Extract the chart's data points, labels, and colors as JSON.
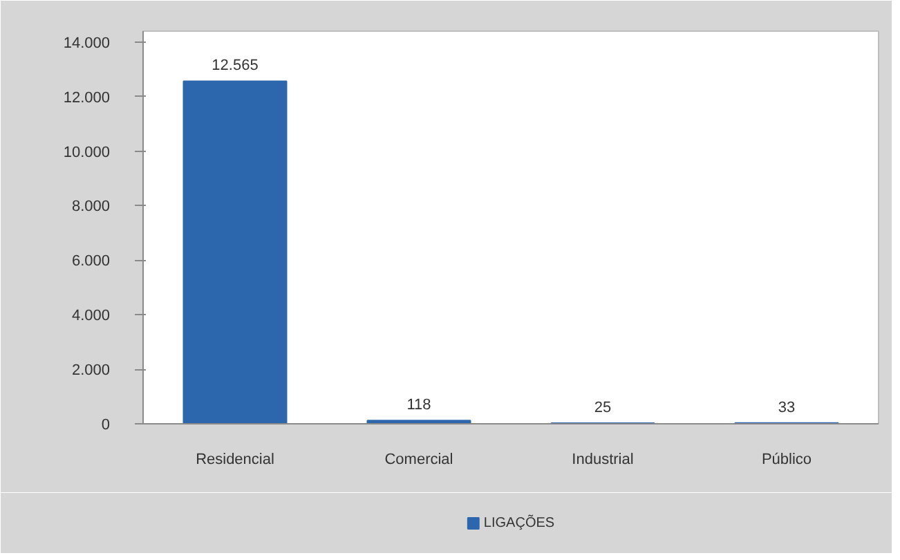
{
  "chart_data": {
    "type": "bar",
    "categories": [
      "Residencial",
      "Comercial",
      "Industrial",
      "Público"
    ],
    "series": [
      {
        "name": "LIGAÇÕES",
        "color": "#2c67ae",
        "values": [
          12565,
          118,
          25,
          33
        ],
        "value_labels": [
          "12.565",
          "118",
          "25",
          "33"
        ]
      }
    ],
    "ylim": [
      0,
      14400
    ],
    "yticks": [
      0,
      {
        "value": 2000,
        "label": "2.000"
      },
      {
        "value": 4000,
        "label": "4.000"
      },
      {
        "value": 6000,
        "label": "6.000"
      },
      {
        "value": 8000,
        "label": "8.000"
      },
      {
        "value": 10000,
        "label": "10.000"
      },
      {
        "value": 12000,
        "label": "12.000"
      },
      {
        "value": 14000,
        "label": "14.000"
      }
    ],
    "grid": false,
    "legend": "bottom"
  }
}
